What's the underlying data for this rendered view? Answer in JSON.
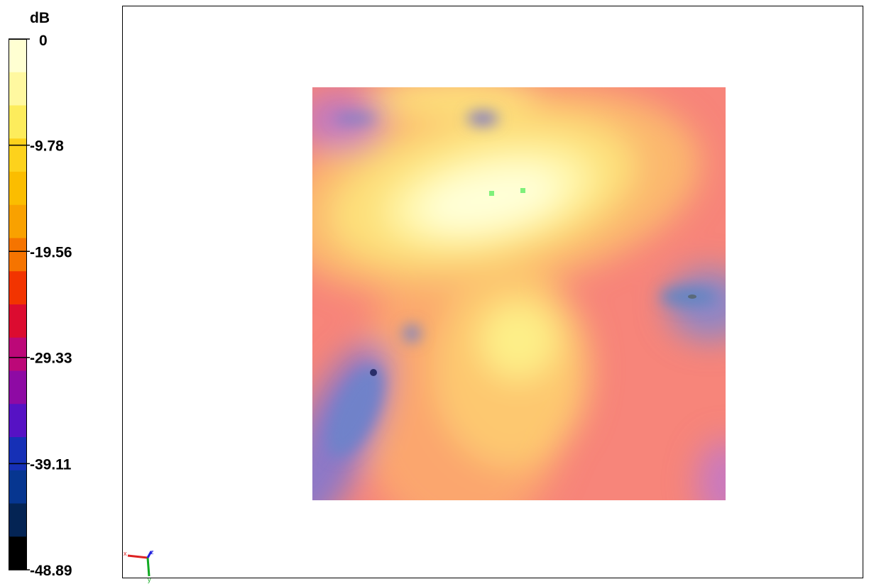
{
  "colorbar": {
    "unit": "dB",
    "ticks": [
      0,
      -9.78,
      -19.56,
      -29.33,
      -39.11,
      -48.89
    ],
    "colors": [
      "#ffffd2",
      "#fff8a0",
      "#fdec5c",
      "#fdd21c",
      "#fbbd00",
      "#f9a100",
      "#f57400",
      "#f23400",
      "#dc0c30",
      "#bc0878",
      "#8e0aa4",
      "#5612c4",
      "#1630b6",
      "#063690",
      "#042454",
      "#000000"
    ]
  },
  "axes_triad": {
    "x": "x",
    "y": "y",
    "z": "z"
  }
}
